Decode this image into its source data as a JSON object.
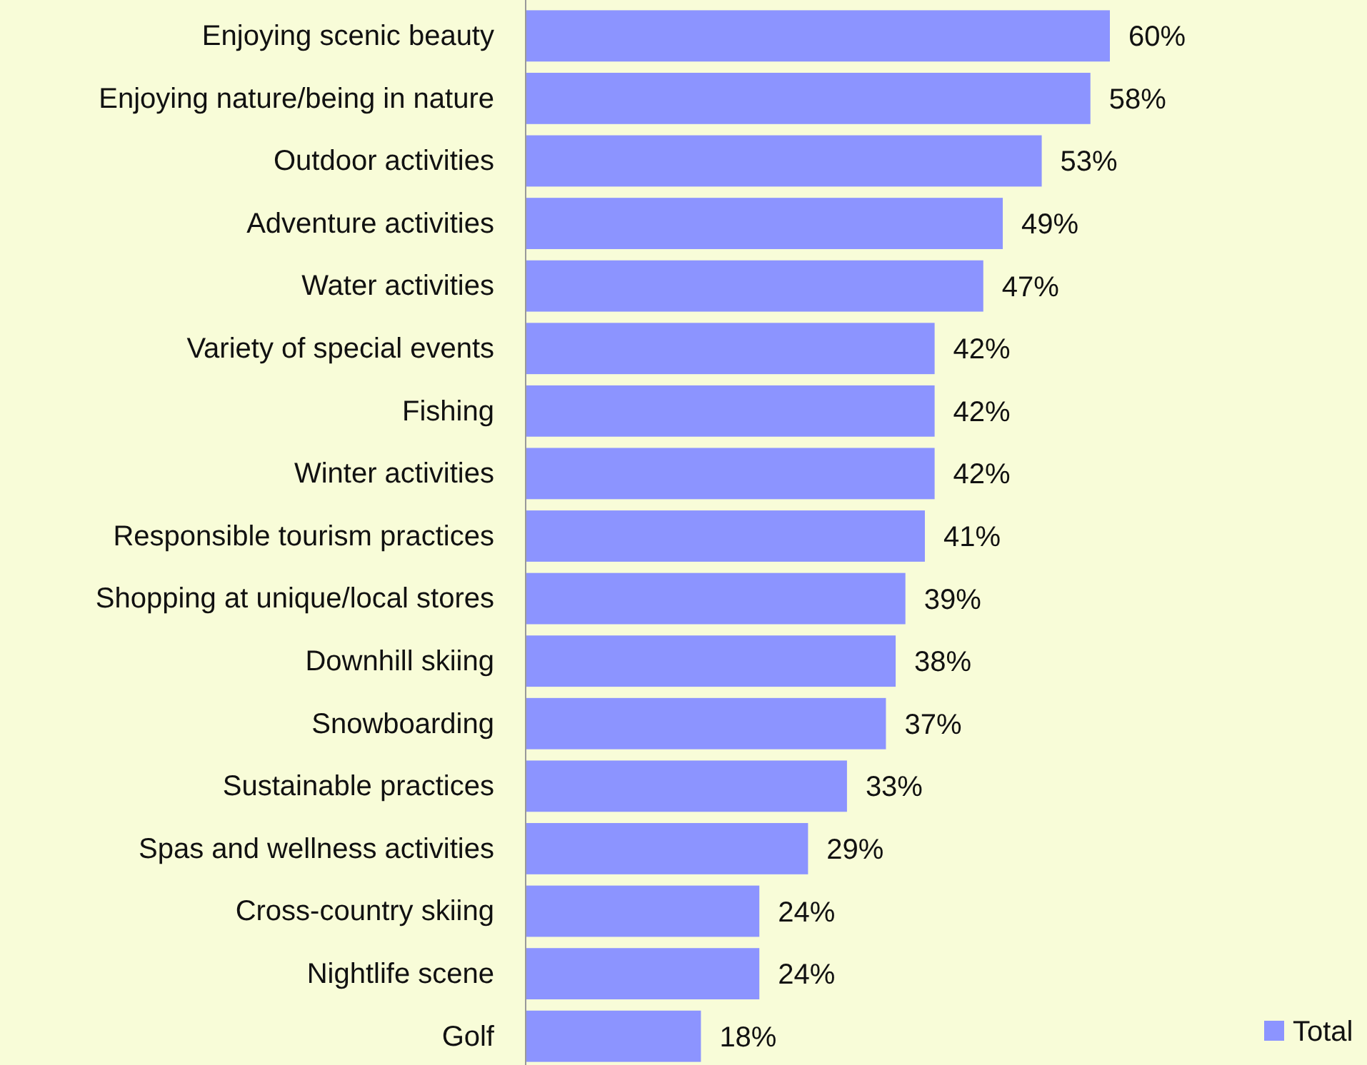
{
  "chart_data": {
    "type": "bar",
    "orientation": "horizontal",
    "categories": [
      "Enjoying scenic beauty",
      "Enjoying nature/being in nature",
      "Outdoor activities",
      "Adventure activities",
      "Water activities",
      "Variety of special events",
      "Fishing",
      "Winter activities",
      "Responsible tourism practices",
      "Shopping at unique/local stores",
      "Downhill skiing",
      "Snowboarding",
      "Sustainable practices",
      "Spas and wellness activities",
      "Cross-country skiing",
      "Nightlife scene",
      "Golf"
    ],
    "series": [
      {
        "name": "Total",
        "color": "#8c94ff",
        "values": [
          60,
          58,
          53,
          49,
          47,
          42,
          42,
          42,
          41,
          39,
          38,
          37,
          33,
          29,
          24,
          24,
          18
        ],
        "value_labels": [
          "60%",
          "58%",
          "53%",
          "49%",
          "47%",
          "42%",
          "42%",
          "42%",
          "41%",
          "39%",
          "38%",
          "37%",
          "33%",
          "29%",
          "24%",
          "24%",
          "18%"
        ]
      }
    ],
    "legend": "bottom right"
  }
}
